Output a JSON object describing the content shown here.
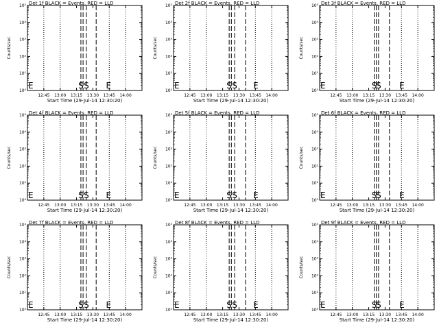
{
  "chart_data": [
    {
      "type": "line",
      "title": "Det 1f BLACK = Events, RED = LLD",
      "ylabel": "Counts/sec",
      "xlabel": "Start Time (29-Jul-14 12:30:20)",
      "xlim": [
        "12:30",
        "14:15"
      ],
      "ylim": [
        1,
        100000
      ],
      "yscale": "log",
      "xticks": [
        "12:45",
        "13:00",
        "13:15",
        "13:30",
        "13:45",
        "14:00"
      ],
      "yticks": [
        "10⁰",
        "10¹",
        "10²",
        "10³",
        "10⁴",
        "10⁵"
      ],
      "dotted_lines": [
        "12:45",
        "13:00",
        "13:45",
        "14:00"
      ],
      "dashed_lines": [
        "13:19",
        "13:21",
        "13:24",
        "13:33"
      ],
      "markers": [
        {
          "text": "E",
          "at": "12:30"
        },
        {
          "text": "S",
          "at": "13:19"
        },
        {
          "text": "S",
          "at": "13:24"
        },
        {
          "text": "E",
          "at": "13:42"
        }
      ]
    },
    {
      "type": "line",
      "title": "Det 2f BLACK = Events, RED = LLD",
      "ylabel": "Counts/sec",
      "xlabel": "Start Time (29-Jul-14 12:30:20)",
      "xlim": [
        "12:30",
        "14:15"
      ],
      "ylim": [
        1,
        100000
      ],
      "yscale": "log",
      "xticks": [
        "12:45",
        "13:00",
        "13:15",
        "13:30",
        "13:45",
        "14:00"
      ],
      "yticks": [
        "10⁰",
        "10¹",
        "10²",
        "10³",
        "10⁴",
        "10⁵"
      ],
      "dotted_lines": [
        "12:45",
        "13:00",
        "13:45",
        "14:00"
      ],
      "dashed_lines": [
        "13:21",
        "13:23",
        "13:26",
        "13:36"
      ],
      "markers": [
        {
          "text": "E",
          "at": "12:30"
        },
        {
          "text": "S",
          "at": "13:21"
        },
        {
          "text": "S",
          "at": "13:26"
        },
        {
          "text": "E",
          "at": "13:43"
        }
      ]
    },
    {
      "type": "line",
      "title": "Det 3f BLACK = Events, RED = LLD",
      "ylabel": "Counts/sec",
      "xlabel": "Start Time (29-Jul-14 12:30:20)",
      "xlim": [
        "12:30",
        "14:15"
      ],
      "ylim": [
        1,
        100000
      ],
      "yscale": "log",
      "xticks": [
        "12:45",
        "13:00",
        "13:15",
        "13:30",
        "13:45",
        "14:00"
      ],
      "yticks": [
        "10⁰",
        "10¹",
        "10²",
        "10³",
        "10⁴",
        "10⁵"
      ],
      "dotted_lines": [
        "12:45",
        "13:00",
        "13:45",
        "14:00"
      ],
      "dashed_lines": [
        "13:20",
        "13:22",
        "13:24",
        "13:34"
      ],
      "markers": [
        {
          "text": "E",
          "at": "12:30"
        },
        {
          "text": "S",
          "at": "13:20"
        },
        {
          "text": "S",
          "at": "13:24"
        },
        {
          "text": "E",
          "at": "13:43"
        }
      ]
    },
    {
      "type": "line",
      "title": "Det 4f BLACK = Events, RED = LLD",
      "ylabel": "Counts/sec",
      "xlabel": "Start Time (29-Jul-14 12:30:20)",
      "xlim": [
        "12:30",
        "14:15"
      ],
      "ylim": [
        1,
        100000
      ],
      "yscale": "log",
      "xticks": [
        "12:45",
        "13:00",
        "13:15",
        "13:30",
        "13:45",
        "14:00"
      ],
      "yticks": [
        "10⁰",
        "10¹",
        "10²",
        "10³",
        "10⁴",
        "10⁵"
      ],
      "dotted_lines": [
        "12:45",
        "13:00",
        "13:45",
        "14:00"
      ],
      "dashed_lines": [
        "13:19",
        "13:21",
        "13:24",
        "13:33"
      ],
      "markers": [
        {
          "text": "E",
          "at": "12:30"
        },
        {
          "text": "S",
          "at": "13:19"
        },
        {
          "text": "S",
          "at": "13:24"
        },
        {
          "text": "E",
          "at": "13:42"
        }
      ]
    },
    {
      "type": "line",
      "title": "Det 5f BLACK = Events, RED = LLD",
      "ylabel": "Counts/sec",
      "xlabel": "Start Time (29-Jul-14 12:30:20)",
      "xlim": [
        "12:30",
        "14:15"
      ],
      "ylim": [
        1,
        100000
      ],
      "yscale": "log",
      "xticks": [
        "12:45",
        "13:00",
        "13:15",
        "13:30",
        "13:45",
        "14:00"
      ],
      "yticks": [
        "10⁰",
        "10¹",
        "10²",
        "10³",
        "10⁴",
        "10⁵"
      ],
      "dotted_lines": [
        "12:45",
        "13:00",
        "13:45",
        "14:00"
      ],
      "dashed_lines": [
        "13:21",
        "13:23",
        "13:26",
        "13:36"
      ],
      "markers": [
        {
          "text": "E",
          "at": "12:30"
        },
        {
          "text": "S",
          "at": "13:21"
        },
        {
          "text": "S",
          "at": "13:26"
        },
        {
          "text": "E",
          "at": "13:43"
        }
      ]
    },
    {
      "type": "line",
      "title": "Det 6f BLACK = Events, RED = LLD",
      "ylabel": "Counts/sec",
      "xlabel": "Start Time (29-Jul-14 12:30:20)",
      "xlim": [
        "12:30",
        "14:15"
      ],
      "ylim": [
        1,
        100000
      ],
      "yscale": "log",
      "xticks": [
        "12:45",
        "13:00",
        "13:15",
        "13:30",
        "13:45",
        "14:00"
      ],
      "yticks": [
        "10⁰",
        "10¹",
        "10²",
        "10³",
        "10⁴",
        "10⁵"
      ],
      "dotted_lines": [
        "12:45",
        "13:00",
        "13:45",
        "14:00"
      ],
      "dashed_lines": [
        "13:20",
        "13:22",
        "13:24",
        "13:34"
      ],
      "markers": [
        {
          "text": "E",
          "at": "12:30"
        },
        {
          "text": "S",
          "at": "13:20"
        },
        {
          "text": "S",
          "at": "13:24"
        },
        {
          "text": "E",
          "at": "13:43"
        }
      ]
    },
    {
      "type": "line",
      "title": "Det 7f BLACK = Events, RED = LLD",
      "ylabel": "Counts/sec",
      "xlabel": "Start Time (29-Jul-14 12:30:20)",
      "xlim": [
        "12:30",
        "14:15"
      ],
      "ylim": [
        1,
        100000
      ],
      "yscale": "log",
      "xticks": [
        "12:45",
        "13:00",
        "13:15",
        "13:30",
        "13:45",
        "14:00"
      ],
      "yticks": [
        "10⁰",
        "10¹",
        "10²",
        "10³",
        "10⁴",
        "10⁵"
      ],
      "dotted_lines": [
        "12:45",
        "13:00",
        "13:45",
        "14:00"
      ],
      "dashed_lines": [
        "13:19",
        "13:21",
        "13:24",
        "13:33"
      ],
      "markers": [
        {
          "text": "E",
          "at": "12:30"
        },
        {
          "text": "S",
          "at": "13:19"
        },
        {
          "text": "S",
          "at": "13:24"
        },
        {
          "text": "E",
          "at": "13:42"
        }
      ]
    },
    {
      "type": "line",
      "title": "Det 8f BLACK = Events, RED = LLD",
      "ylabel": "Counts/sec",
      "xlabel": "Start Time (29-Jul-14 12:30:20)",
      "xlim": [
        "12:30",
        "14:15"
      ],
      "ylim": [
        1,
        100000
      ],
      "yscale": "log",
      "xticks": [
        "12:45",
        "13:00",
        "13:15",
        "13:30",
        "13:45",
        "14:00"
      ],
      "yticks": [
        "10⁰",
        "10¹",
        "10²",
        "10³",
        "10⁴",
        "10⁵"
      ],
      "dotted_lines": [
        "12:45",
        "13:00",
        "13:45",
        "14:00"
      ],
      "dashed_lines": [
        "13:21",
        "13:23",
        "13:26",
        "13:36"
      ],
      "markers": [
        {
          "text": "E",
          "at": "12:30"
        },
        {
          "text": "S",
          "at": "13:21"
        },
        {
          "text": "S",
          "at": "13:26"
        },
        {
          "text": "E",
          "at": "13:43"
        }
      ]
    },
    {
      "type": "line",
      "title": "Det 9f BLACK = Events, RED = LLD",
      "ylabel": "Counts/sec",
      "xlabel": "Start Time (29-Jul-14 12:30:20)",
      "xlim": [
        "12:30",
        "14:15"
      ],
      "ylim": [
        1,
        100000
      ],
      "yscale": "log",
      "xticks": [
        "12:45",
        "13:00",
        "13:15",
        "13:30",
        "13:45",
        "14:00"
      ],
      "yticks": [
        "10⁰",
        "10¹",
        "10²",
        "10³",
        "10⁴",
        "10⁵"
      ],
      "dotted_lines": [
        "12:45",
        "13:00",
        "13:45",
        "14:00"
      ],
      "dashed_lines": [
        "13:20",
        "13:22",
        "13:24",
        "13:34"
      ],
      "markers": [
        {
          "text": "E",
          "at": "12:30"
        },
        {
          "text": "S",
          "at": "13:20"
        },
        {
          "text": "S",
          "at": "13:24"
        },
        {
          "text": "E",
          "at": "13:43"
        }
      ]
    }
  ]
}
